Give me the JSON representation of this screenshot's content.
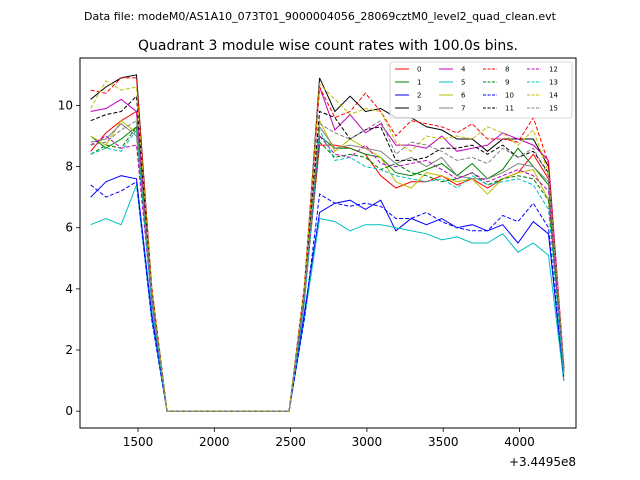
{
  "suptitle": "Data file: modeM0/AS1A10_073T01_9000004056_28069cztM0_level2_quad_clean.evt",
  "chart_data": {
    "type": "line",
    "title": "Quadrant 3 module wise count rates with 100.0s bins.",
    "xlabel": "",
    "ylabel": "",
    "x_offset_label": "+3.4495e8",
    "xlim": [
      1120,
      4370
    ],
    "ylim": [
      -0.55,
      11.55
    ],
    "xticks": [
      1500,
      2000,
      2500,
      3000,
      3500,
      4000
    ],
    "xtick_labels": [
      "1500",
      "2000",
      "2500",
      "3000",
      "3500",
      "4000"
    ],
    "yticks": [
      0,
      2,
      4,
      6,
      8,
      10
    ],
    "ytick_labels": [
      "0",
      "2",
      "4",
      "6",
      "8",
      "10"
    ],
    "grid": false,
    "legend_position": "upper-right",
    "x": [
      1190,
      1290,
      1390,
      1490,
      1590,
      1690,
      1790,
      1890,
      1990,
      2090,
      2190,
      2290,
      2390,
      2490,
      2590,
      2690,
      2790,
      2890,
      2990,
      3090,
      3190,
      3290,
      3390,
      3490,
      3590,
      3690,
      3790,
      3890,
      3990,
      4090,
      4190,
      4290
    ],
    "series": [
      {
        "name": "0",
        "color": "#ff0000",
        "dash": "solid",
        "values": [
          8.5,
          9.1,
          9.5,
          9.8,
          4.0,
          0,
          0,
          0,
          0,
          0,
          0,
          0,
          0,
          0,
          3.8,
          8.7,
          8.7,
          8.6,
          8.4,
          7.7,
          7.3,
          7.5,
          7.5,
          7.7,
          7.4,
          7.6,
          7.3,
          7.6,
          7.8,
          8.4,
          7.6,
          1.4
        ]
      },
      {
        "name": "1",
        "color": "#008000",
        "dash": "solid",
        "values": [
          9.0,
          8.6,
          8.9,
          9.3,
          3.7,
          0,
          0,
          0,
          0,
          0,
          0,
          0,
          0,
          0,
          3.7,
          9.0,
          8.6,
          8.6,
          8.4,
          8.3,
          7.8,
          7.7,
          7.9,
          8.1,
          7.7,
          8.1,
          7.6,
          7.9,
          8.6,
          8.0,
          7.4,
          1.3
        ]
      },
      {
        "name": "2",
        "color": "#0000ff",
        "dash": "solid",
        "values": [
          7.0,
          7.5,
          7.7,
          7.6,
          3.2,
          0,
          0,
          0,
          0,
          0,
          0,
          0,
          0,
          0,
          3.2,
          6.5,
          6.8,
          6.9,
          6.6,
          6.9,
          5.9,
          6.3,
          6.1,
          6.3,
          6.0,
          6.1,
          5.9,
          6.1,
          5.5,
          6.2,
          5.8,
          1.0
        ]
      },
      {
        "name": "3",
        "color": "#000000",
        "dash": "solid",
        "values": [
          10.2,
          10.6,
          10.9,
          11.0,
          4.0,
          0,
          0,
          0,
          0,
          0,
          0,
          0,
          0,
          0,
          4.0,
          10.9,
          9.8,
          10.3,
          9.8,
          9.9,
          9.6,
          9.6,
          9.3,
          9.2,
          8.9,
          8.9,
          8.5,
          8.9,
          8.9,
          8.9,
          8.0,
          1.4
        ]
      },
      {
        "name": "4",
        "color": "#bf00bf",
        "dash": "solid",
        "values": [
          9.8,
          9.9,
          10.2,
          9.8,
          3.9,
          0,
          0,
          0,
          0,
          0,
          0,
          0,
          0,
          0,
          3.9,
          10.6,
          9.2,
          9.7,
          9.1,
          9.4,
          8.7,
          8.7,
          8.6,
          9.0,
          8.5,
          8.6,
          8.7,
          9.1,
          8.9,
          8.7,
          8.2,
          1.5
        ]
      },
      {
        "name": "5",
        "color": "#00bfbf",
        "dash": "solid",
        "values": [
          6.1,
          6.3,
          6.1,
          7.4,
          3.0,
          0,
          0,
          0,
          0,
          0,
          0,
          0,
          0,
          0,
          3.0,
          6.3,
          6.2,
          5.9,
          6.1,
          6.1,
          6.0,
          5.9,
          5.8,
          5.6,
          5.7,
          5.5,
          5.5,
          5.8,
          5.2,
          5.5,
          5.1,
          1.0
        ]
      },
      {
        "name": "6",
        "color": "#bfbf00",
        "dash": "solid",
        "values": [
          9.0,
          8.7,
          9.5,
          9.1,
          3.8,
          0,
          0,
          0,
          0,
          0,
          0,
          0,
          0,
          0,
          3.8,
          9.5,
          8.5,
          8.9,
          8.6,
          8.3,
          7.5,
          7.3,
          7.8,
          7.7,
          7.5,
          7.6,
          7.1,
          7.6,
          7.8,
          7.9,
          6.9,
          1.2
        ]
      },
      {
        "name": "7",
        "color": "#808080",
        "dash": "solid",
        "values": [
          8.8,
          8.9,
          9.4,
          9.0,
          3.7,
          0,
          0,
          0,
          0,
          0,
          0,
          0,
          0,
          0,
          3.7,
          9.3,
          8.6,
          8.7,
          8.6,
          8.5,
          8.1,
          8.3,
          8.0,
          8.3,
          7.7,
          7.6,
          7.6,
          7.8,
          8.1,
          8.0,
          7.5,
          1.3
        ]
      },
      {
        "name": "8",
        "color": "#ff0000",
        "dash": "dashed",
        "values": [
          10.5,
          10.4,
          10.9,
          10.9,
          4.1,
          0,
          0,
          0,
          0,
          0,
          0,
          0,
          0,
          0,
          4.1,
          10.6,
          9.6,
          9.8,
          10.4,
          9.8,
          9.0,
          9.5,
          9.4,
          9.3,
          9.1,
          9.4,
          8.9,
          8.9,
          8.8,
          9.6,
          8.1,
          1.5
        ]
      },
      {
        "name": "9",
        "color": "#008000",
        "dash": "dashed",
        "values": [
          8.4,
          8.7,
          8.6,
          9.3,
          3.6,
          0,
          0,
          0,
          0,
          0,
          0,
          0,
          0,
          0,
          3.6,
          8.8,
          8.3,
          8.4,
          8.3,
          7.9,
          8.1,
          7.8,
          7.7,
          7.5,
          7.6,
          7.8,
          7.4,
          7.6,
          7.7,
          7.6,
          6.9,
          1.2
        ]
      },
      {
        "name": "10",
        "color": "#0000ff",
        "dash": "dashed",
        "values": [
          7.4,
          7.0,
          7.2,
          7.5,
          3.0,
          0,
          0,
          0,
          0,
          0,
          0,
          0,
          0,
          0,
          3.0,
          7.1,
          6.8,
          6.7,
          6.8,
          6.7,
          6.3,
          6.3,
          6.5,
          6.2,
          6.0,
          5.9,
          5.9,
          6.4,
          6.2,
          6.8,
          6.0,
          1.1
        ]
      },
      {
        "name": "11",
        "color": "#000000",
        "dash": "dashed",
        "values": [
          9.5,
          9.7,
          9.8,
          10.3,
          3.9,
          0,
          0,
          0,
          0,
          0,
          0,
          0,
          0,
          0,
          3.9,
          9.8,
          9.6,
          8.9,
          9.2,
          9.3,
          8.2,
          8.2,
          8.3,
          8.6,
          8.6,
          8.7,
          8.4,
          8.7,
          8.3,
          8.5,
          7.8,
          1.4
        ]
      },
      {
        "name": "12",
        "color": "#bf00bf",
        "dash": "dashed",
        "values": [
          8.7,
          9.0,
          8.6,
          8.7,
          3.6,
          0,
          0,
          0,
          0,
          0,
          0,
          0,
          0,
          0,
          3.6,
          9.0,
          8.4,
          8.3,
          8.7,
          8.1,
          8.0,
          8.1,
          8.2,
          7.9,
          7.6,
          7.8,
          7.5,
          7.7,
          7.9,
          7.7,
          7.2,
          1.3
        ]
      },
      {
        "name": "13",
        "color": "#00bfbf",
        "dash": "dashed",
        "values": [
          8.4,
          8.6,
          8.5,
          9.2,
          3.5,
          0,
          0,
          0,
          0,
          0,
          0,
          0,
          0,
          0,
          3.5,
          9.2,
          8.2,
          8.3,
          8.0,
          7.9,
          7.7,
          7.6,
          7.5,
          7.6,
          7.3,
          7.7,
          7.4,
          7.5,
          7.6,
          7.4,
          6.6,
          1.2
        ]
      },
      {
        "name": "14",
        "color": "#bfbf00",
        "dash": "dashed",
        "values": [
          9.9,
          10.8,
          10.5,
          10.6,
          4.0,
          0,
          0,
          0,
          0,
          0,
          0,
          0,
          0,
          0,
          4.0,
          10.7,
          10.2,
          9.7,
          9.9,
          9.8,
          8.8,
          8.5,
          9.0,
          8.9,
          9.0,
          8.9,
          9.3,
          9.1,
          8.7,
          9.2,
          7.8,
          1.5
        ]
      },
      {
        "name": "15",
        "color": "#808080",
        "dash": "dashed",
        "values": [
          8.7,
          8.8,
          9.2,
          9.5,
          3.8,
          0,
          0,
          0,
          0,
          0,
          0,
          0,
          0,
          0,
          3.8,
          9.4,
          9.1,
          8.9,
          9.2,
          9.5,
          8.4,
          8.8,
          8.7,
          8.5,
          8.2,
          8.3,
          8.1,
          8.6,
          8.3,
          8.6,
          7.7,
          1.4
        ]
      }
    ]
  }
}
